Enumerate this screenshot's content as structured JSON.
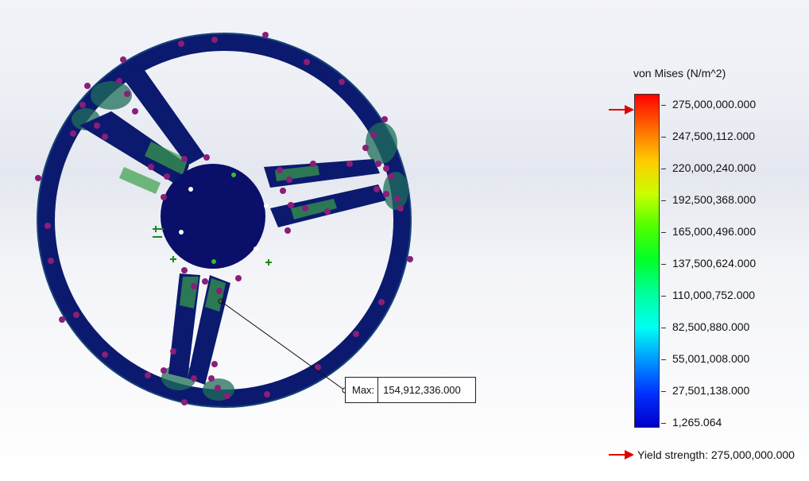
{
  "legend": {
    "title": "von Mises (N/m^2)",
    "labels": [
      "275,000,000.000",
      "247,500,112.000",
      "220,000,240.000",
      "192,500,368.000",
      "165,000,496.000",
      "137,500,624.000",
      "110,000,752.000",
      "82,500,880.000",
      "55,001,008.000",
      "27,501,138.000",
      "1,265.064"
    ],
    "yield_text": "Yield strength: 275,000,000.000"
  },
  "probe": {
    "label": "Max:",
    "value": "154,912,336.000"
  },
  "colors": {
    "model_base": "#0b1a6e",
    "stress_mid": "#1f7a4e",
    "stress_high": "#4cb04a",
    "fixture_markers": "#8a1e78",
    "load_markers": "#1a8a1a",
    "arrow": "#e00000"
  }
}
